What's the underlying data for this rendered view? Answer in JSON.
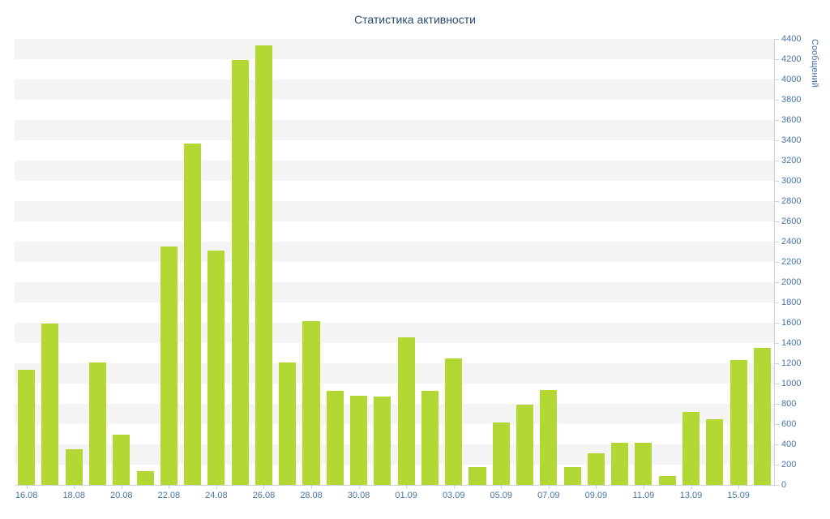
{
  "title": "Статистика активности",
  "chart_data": {
    "type": "bar",
    "title": "Статистика активности",
    "xlabel": "",
    "ylabel": "Сообщений",
    "ylim": [
      0,
      4400
    ],
    "y_tick_step": 200,
    "grid": "alternating-horizontal-bands",
    "legend": "none",
    "categories": [
      "16.08",
      "17.08",
      "18.08",
      "19.08",
      "20.08",
      "21.08",
      "22.08",
      "23.08",
      "24.08",
      "25.08",
      "26.08",
      "27.08",
      "28.08",
      "29.08",
      "30.08",
      "31.08",
      "01.09",
      "02.09",
      "03.09",
      "04.09",
      "05.09",
      "06.09",
      "07.09",
      "08.09",
      "09.09",
      "10.09",
      "11.09",
      "12.09",
      "13.09",
      "14.09",
      "15.09",
      "16.09"
    ],
    "x_tick_labels": [
      "16.08",
      "18.08",
      "20.08",
      "22.08",
      "24.08",
      "26.08",
      "28.08",
      "30.08",
      "01.09",
      "03.09",
      "05.09",
      "07.09",
      "09.09",
      "11.09",
      "13.09",
      "15.09"
    ],
    "values": [
      1140,
      1590,
      350,
      1210,
      500,
      140,
      2350,
      3370,
      2310,
      4190,
      4340,
      1210,
      1620,
      930,
      880,
      870,
      1460,
      930,
      1250,
      180,
      620,
      790,
      940,
      180,
      310,
      420,
      420,
      90,
      720,
      650,
      1230,
      1350
    ],
    "colors": {
      "bar": "#b3d733",
      "band_odd": "#f4f4f4",
      "band_even": "#ffffff",
      "axis_line": "#c9d5e1",
      "axis_label": "#4a74a5",
      "title": "#274b6d"
    }
  }
}
